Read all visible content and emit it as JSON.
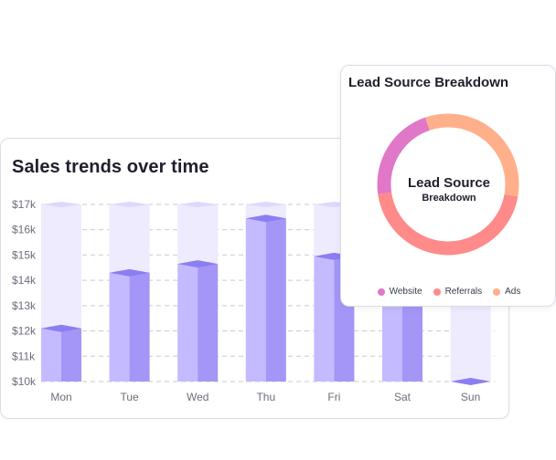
{
  "sales_card": {
    "title": "Sales trends over time"
  },
  "lead_card": {
    "title": "Lead Source Breakdown",
    "center_title": "Lead Source",
    "center_subtitle": "Breakdown",
    "legend": [
      {
        "label": "Website",
        "color": "#e077c7"
      },
      {
        "label": "Referrals",
        "color": "#ff8a8a"
      },
      {
        "label": "Ads",
        "color": "#ffb08a"
      }
    ]
  },
  "chart_data": [
    {
      "type": "bar",
      "title": "Sales trends over time",
      "categories": [
        "Mon",
        "Tue",
        "Wed",
        "Thu",
        "Fri",
        "Sat",
        "Sun"
      ],
      "values": [
        12100,
        14300,
        14650,
        16450,
        14950,
        16800,
        10000
      ],
      "y_ticks": [
        "$10k",
        "$11k",
        "$12k",
        "$13k",
        "$14k",
        "$15k",
        "$16k",
        "$17k"
      ],
      "ylim": [
        10000,
        17000
      ],
      "grid": true,
      "colors": {
        "front": "#c4baff",
        "side": "#a396f7",
        "top": "#8b7ef0",
        "track": "#eeebff"
      }
    },
    {
      "type": "pie",
      "title": "Lead Source Breakdown",
      "labels": [
        "Website",
        "Referrals",
        "Ads"
      ],
      "values": [
        22,
        45,
        33
      ],
      "colors": [
        "#e077c7",
        "#ff8a8a",
        "#ffb08a"
      ],
      "legend": "bottom"
    }
  ]
}
